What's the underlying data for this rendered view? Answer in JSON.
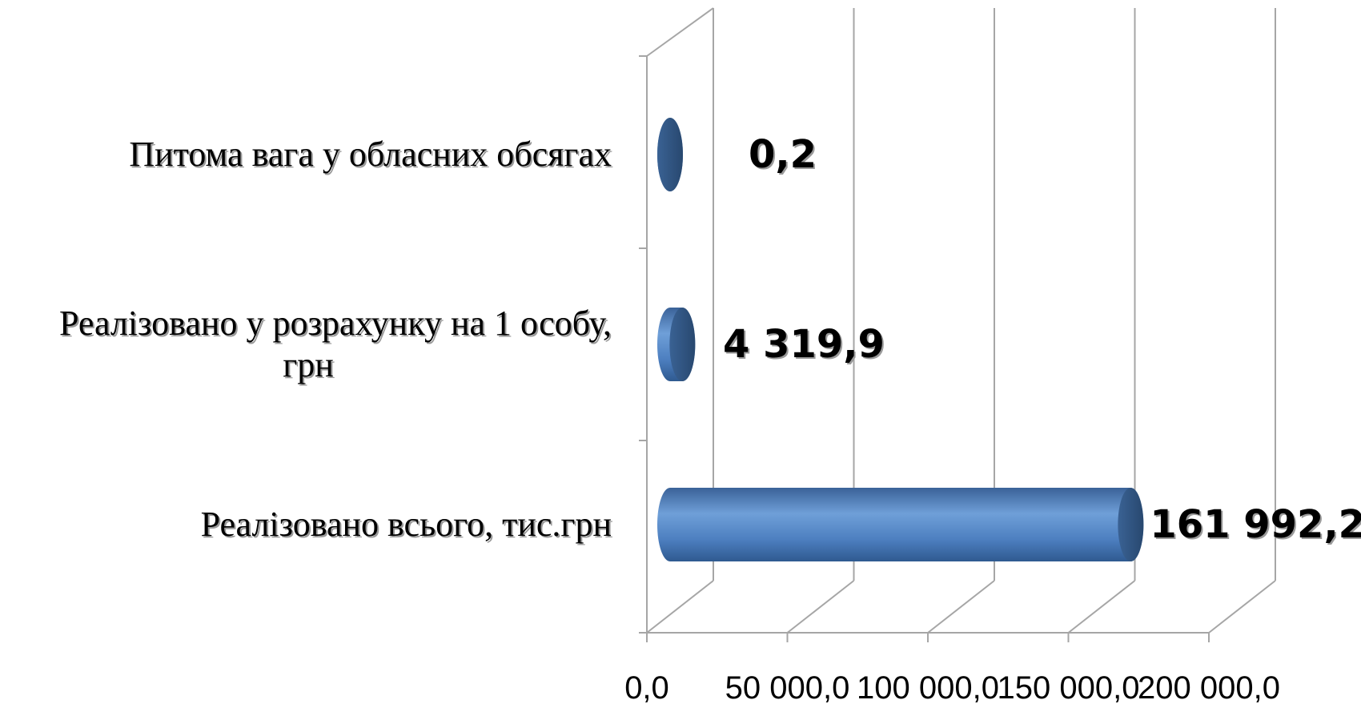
{
  "chart_data": {
    "type": "bar",
    "orientation": "horizontal",
    "style": "3d-cylinder",
    "categories": [
      "Реалізовано всього, тис.грн",
      "Реалізовано у розрахунку на 1 особу, грн",
      "Питома вага у обласних обсягах"
    ],
    "category_lines": [
      [
        "Реалізовано всього, тис.грн"
      ],
      [
        "Реалізовано у розрахунку на 1 особу,",
        "грн"
      ],
      [
        "Питома вага у обласних обсягах"
      ]
    ],
    "values": [
      161992.2,
      4319.9,
      0.2
    ],
    "data_labels": [
      "161 992,2",
      "4 319,9",
      "0,2"
    ],
    "x_ticks": [
      0,
      50000,
      100000,
      150000,
      200000
    ],
    "x_tick_labels": [
      "0,0",
      "50 000,0",
      "100 000,0",
      "150 000,0",
      "200 000,0"
    ],
    "xlim": [
      0,
      200000
    ],
    "grid": true,
    "legend": "none",
    "colors": {
      "bar_body": "#4f81bd",
      "bar_highlight": "#8db4e2",
      "bar_end": "#2e5283",
      "grid": "#a6a6a6"
    }
  }
}
